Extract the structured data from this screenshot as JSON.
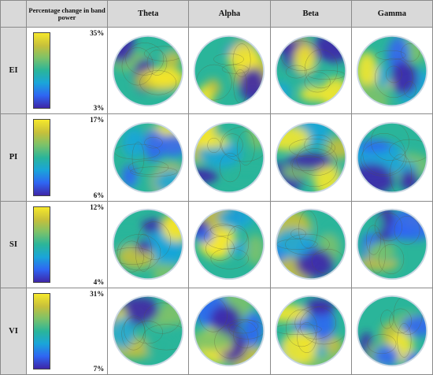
{
  "header": {
    "corner_label": "Percentage change in band power",
    "columns": [
      "Theta",
      "Alpha",
      "Beta",
      "Gamma"
    ]
  },
  "rows": [
    {
      "label": "EI",
      "scale_max": "35%",
      "scale_min": "3%"
    },
    {
      "label": "PI",
      "scale_max": "17%",
      "scale_min": "6%"
    },
    {
      "label": "SI",
      "scale_max": "12%",
      "scale_min": "4%"
    },
    {
      "label": "VI",
      "scale_max": "31%",
      "scale_min": "7%"
    }
  ],
  "colors": {
    "colormap": [
      "#3e26a8",
      "#2f66f3",
      "#1aa5d9",
      "#2ab59a",
      "#7cc26a",
      "#c7c03a",
      "#f6e82b"
    ],
    "header_bg": "#d9d9d9",
    "grid_border": "#8a8a8a"
  }
}
